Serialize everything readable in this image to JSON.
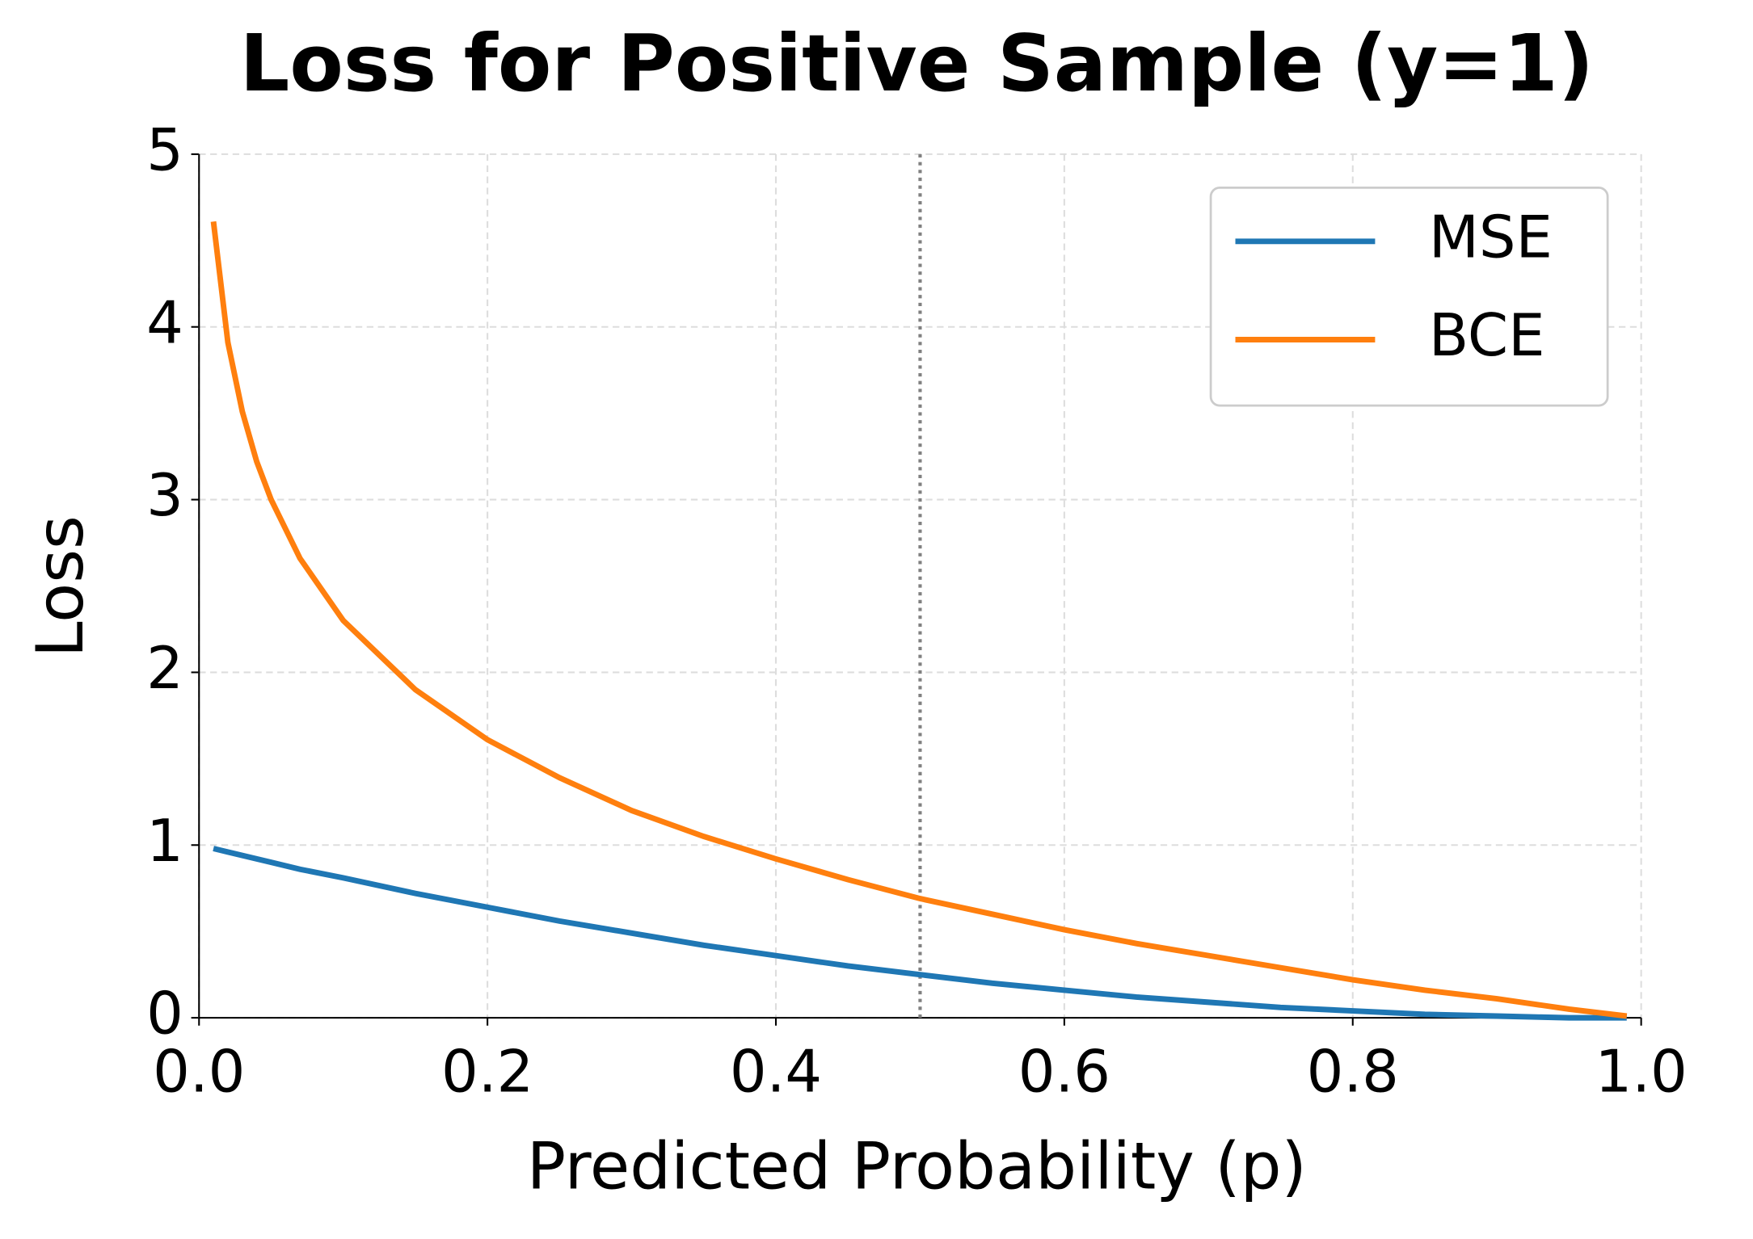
{
  "chart_data": {
    "type": "line",
    "title": "Loss for Positive Sample (y=1)",
    "x_label": "Predicted Probability (p)",
    "y_label": "Loss",
    "x": [
      0.01,
      0.02,
      0.03,
      0.04,
      0.05,
      0.07,
      0.1,
      0.15,
      0.2,
      0.25,
      0.3,
      0.35,
      0.4,
      0.45,
      0.5,
      0.55,
      0.6,
      0.65,
      0.7,
      0.75,
      0.8,
      0.85,
      0.9,
      0.95,
      0.99
    ],
    "series": [
      {
        "name": "MSE",
        "color": "#1f77b4",
        "values": [
          0.98,
          0.96,
          0.94,
          0.92,
          0.9,
          0.86,
          0.81,
          0.72,
          0.64,
          0.56,
          0.49,
          0.42,
          0.36,
          0.3,
          0.25,
          0.2,
          0.16,
          0.12,
          0.09,
          0.06,
          0.04,
          0.02,
          0.01,
          0.0,
          0.0
        ]
      },
      {
        "name": "BCE",
        "color": "#ff7f0e",
        "values": [
          4.61,
          3.91,
          3.51,
          3.22,
          3.0,
          2.66,
          2.3,
          1.9,
          1.61,
          1.39,
          1.2,
          1.05,
          0.92,
          0.8,
          0.69,
          0.6,
          0.51,
          0.43,
          0.36,
          0.29,
          0.22,
          0.16,
          0.11,
          0.05,
          0.01
        ]
      }
    ],
    "xlim": [
      0,
      1
    ],
    "ylim": [
      0,
      5
    ],
    "xticks": [
      {
        "value": 0,
        "label": "0.0"
      },
      0.2,
      0.4,
      0.6,
      0.8,
      {
        "value": 1,
        "label": "1.0"
      }
    ],
    "yticks": [
      0,
      1,
      2,
      3,
      4,
      5
    ],
    "vline": 0.5,
    "grid": true,
    "legend": "upper-right"
  }
}
